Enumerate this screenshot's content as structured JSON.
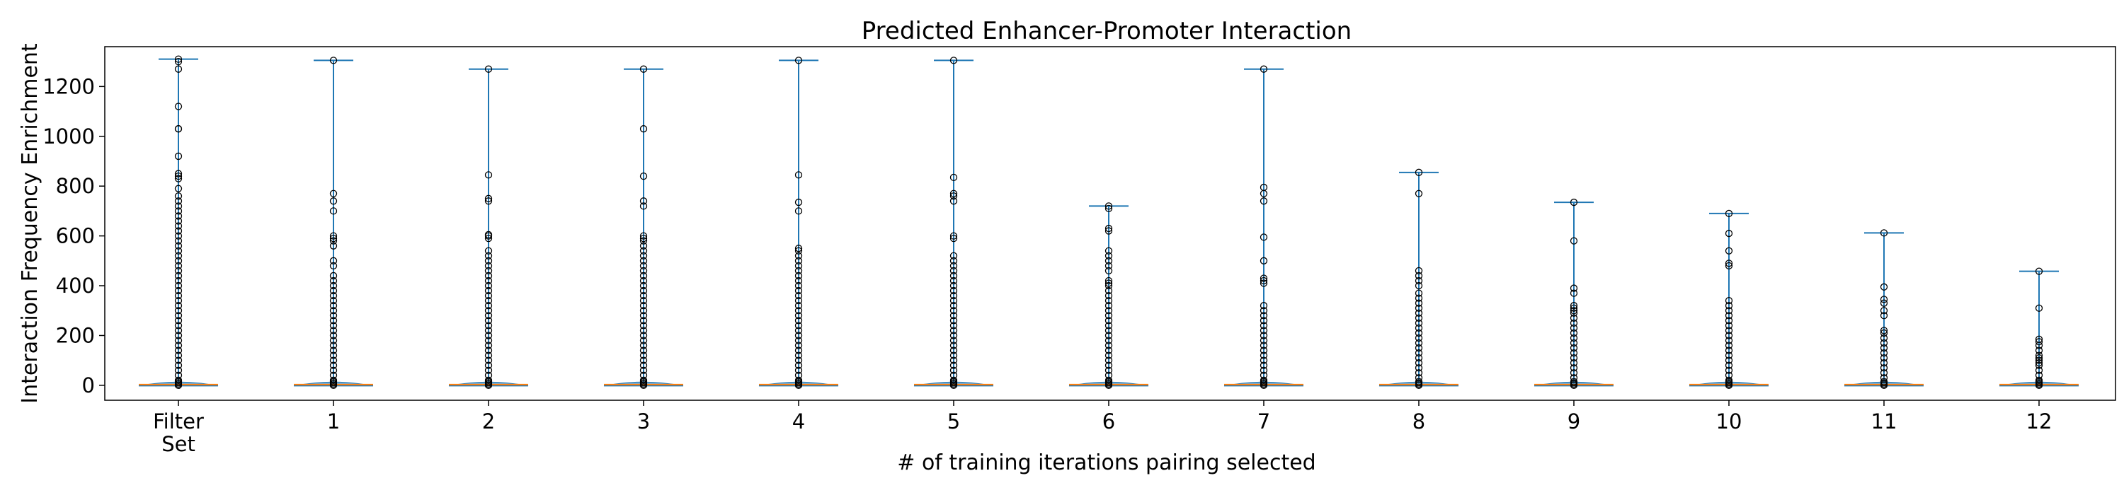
{
  "chart_data": {
    "type": "violin",
    "title": "Predicted Enhancer-Promoter Interaction",
    "xlabel": "# of training iterations pairing selected",
    "ylabel": "Interaction Frequency Enrichment",
    "ylim": [
      -60,
      1360
    ],
    "yticks": [
      0,
      200,
      400,
      600,
      800,
      1000,
      1200
    ],
    "grid": false,
    "categories": [
      "Filter\nSet",
      "1",
      "2",
      "3",
      "4",
      "5",
      "6",
      "7",
      "8",
      "9",
      "10",
      "11",
      "12"
    ],
    "series": [
      {
        "category": "Filter\nSet",
        "max": 1310,
        "median": 3,
        "outliers": [
          1310,
          1300,
          1270,
          1120,
          1030,
          1030,
          920,
          850,
          840,
          830,
          790,
          760,
          740,
          720,
          700,
          680,
          660,
          640,
          620,
          600,
          580,
          560,
          540,
          520,
          500,
          480,
          460,
          440,
          420,
          400,
          380,
          360,
          340,
          320,
          300,
          280,
          260,
          240,
          220,
          200,
          180,
          160,
          140,
          120,
          100,
          80,
          60,
          40,
          20
        ]
      },
      {
        "category": "1",
        "max": 1305,
        "median": 3,
        "outliers": [
          1305,
          770,
          740,
          700,
          600,
          590,
          580,
          560,
          500,
          480,
          440,
          420,
          400,
          380,
          360,
          340,
          320,
          300,
          280,
          260,
          240,
          220,
          200,
          180,
          160,
          140,
          120,
          100,
          80,
          60,
          40,
          20
        ]
      },
      {
        "category": "2",
        "max": 1270,
        "median": 3,
        "outliers": [
          1270,
          845,
          750,
          740,
          605,
          600,
          590,
          540,
          520,
          500,
          480,
          460,
          440,
          420,
          400,
          380,
          360,
          340,
          320,
          300,
          280,
          260,
          240,
          220,
          200,
          180,
          160,
          140,
          120,
          100,
          80,
          60,
          40,
          20
        ]
      },
      {
        "category": "3",
        "max": 1270,
        "median": 3,
        "outliers": [
          1270,
          1030,
          840,
          740,
          720,
          600,
          590,
          580,
          560,
          540,
          520,
          500,
          480,
          460,
          440,
          420,
          400,
          380,
          360,
          340,
          320,
          300,
          280,
          260,
          240,
          220,
          200,
          180,
          160,
          140,
          120,
          100,
          80,
          60,
          40,
          20
        ]
      },
      {
        "category": "4",
        "max": 1305,
        "median": 3,
        "outliers": [
          1305,
          845,
          735,
          700,
          550,
          540,
          520,
          500,
          480,
          460,
          440,
          420,
          400,
          380,
          360,
          340,
          320,
          300,
          280,
          260,
          240,
          220,
          200,
          180,
          160,
          140,
          120,
          100,
          80,
          60,
          40,
          20
        ]
      },
      {
        "category": "5",
        "max": 1305,
        "median": 3,
        "outliers": [
          1305,
          835,
          770,
          760,
          740,
          600,
          590,
          520,
          500,
          480,
          460,
          440,
          420,
          400,
          380,
          360,
          340,
          320,
          300,
          280,
          260,
          240,
          220,
          200,
          180,
          160,
          140,
          120,
          100,
          80,
          60,
          40,
          20
        ]
      },
      {
        "category": "6",
        "max": 720,
        "median": 3,
        "outliers": [
          720,
          710,
          630,
          620,
          540,
          520,
          500,
          480,
          460,
          420,
          410,
          400,
          380,
          360,
          340,
          320,
          300,
          280,
          260,
          240,
          220,
          200,
          180,
          160,
          140,
          120,
          100,
          80,
          60,
          40,
          20
        ]
      },
      {
        "category": "7",
        "max": 1270,
        "median": 3,
        "outliers": [
          1270,
          795,
          770,
          740,
          595,
          500,
          430,
          420,
          410,
          320,
          300,
          280,
          260,
          240,
          220,
          200,
          180,
          160,
          140,
          120,
          100,
          80,
          60,
          40,
          20
        ]
      },
      {
        "category": "8",
        "max": 855,
        "median": 3,
        "outliers": [
          855,
          770,
          460,
          440,
          420,
          400,
          370,
          350,
          330,
          310,
          290,
          270,
          250,
          230,
          210,
          190,
          170,
          150,
          130,
          110,
          90,
          70,
          50,
          30
        ]
      },
      {
        "category": "9",
        "max": 735,
        "median": 3,
        "outliers": [
          735,
          580,
          390,
          370,
          320,
          310,
          300,
          290,
          270,
          250,
          230,
          210,
          190,
          170,
          150,
          130,
          110,
          90,
          70,
          50,
          30
        ]
      },
      {
        "category": "10",
        "max": 690,
        "median": 3,
        "outliers": [
          690,
          610,
          540,
          490,
          480,
          340,
          320,
          300,
          280,
          260,
          240,
          220,
          200,
          180,
          160,
          140,
          120,
          100,
          80,
          60,
          40,
          20
        ]
      },
      {
        "category": "11",
        "max": 612,
        "median": 3,
        "outliers": [
          612,
          395,
          345,
          330,
          300,
          280,
          220,
          210,
          190,
          170,
          150,
          130,
          110,
          90,
          70,
          50,
          30
        ]
      },
      {
        "category": "12",
        "max": 458,
        "median": 3,
        "outliers": [
          458,
          310,
          185,
          175,
          160,
          140,
          120,
          110,
          100,
          90,
          80,
          60,
          40,
          20
        ]
      }
    ],
    "colors": {
      "violin_fill": "#1f77b4",
      "whisker": "#1f77b4",
      "median": "#ff7f0e",
      "outlier_edge": "#000000",
      "axes": "#000000"
    }
  }
}
